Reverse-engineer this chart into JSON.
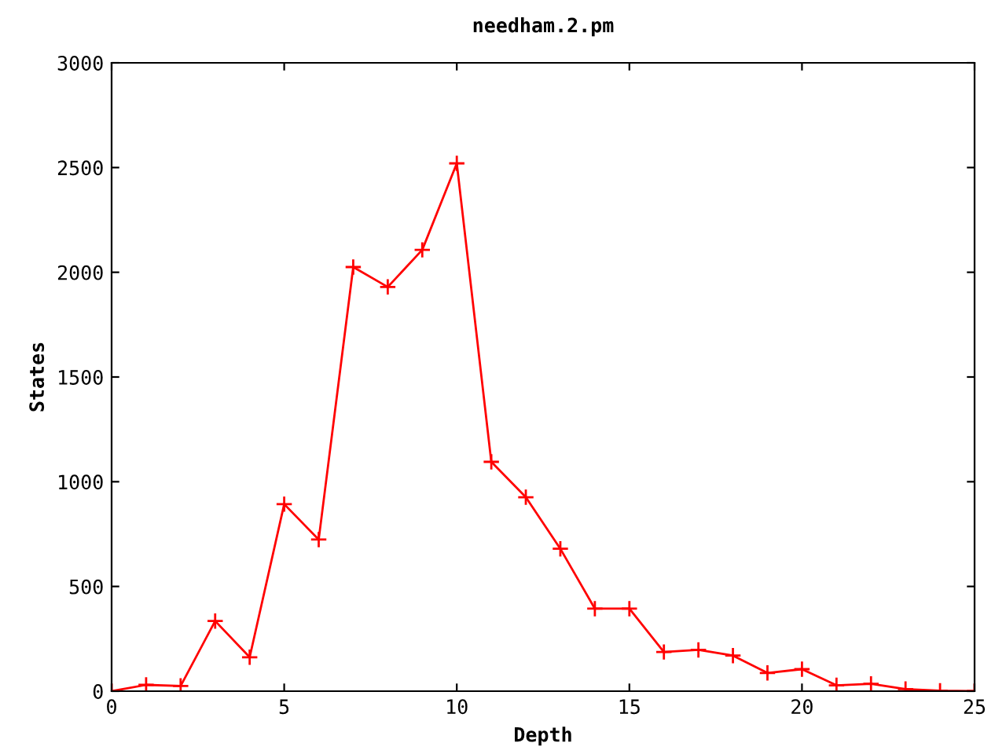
{
  "chart_data": {
    "type": "line",
    "title": "needham.2.pm",
    "xlabel": "Depth",
    "ylabel": "States",
    "x": [
      0,
      1,
      2,
      3,
      4,
      5,
      6,
      7,
      8,
      9,
      10,
      11,
      12,
      13,
      14,
      15,
      16,
      17,
      18,
      19,
      20,
      21,
      22,
      23,
      24,
      25
    ],
    "series": [
      {
        "color": "#ff0000",
        "values": [
          0,
          30,
          25,
          335,
          162,
          893,
          724,
          2025,
          1930,
          2107,
          2520,
          1095,
          926,
          680,
          394,
          394,
          187,
          197,
          170,
          87,
          105,
          28,
          35,
          10,
          2,
          0
        ]
      }
    ],
    "xlim": [
      0,
      25
    ],
    "ylim": [
      0,
      3000
    ],
    "xticks": [
      0,
      5,
      10,
      15,
      20,
      25
    ],
    "yticks": [
      0,
      500,
      1000,
      1500,
      2000,
      2500,
      3000
    ],
    "marker": "cross",
    "grid": false,
    "legend": false
  }
}
